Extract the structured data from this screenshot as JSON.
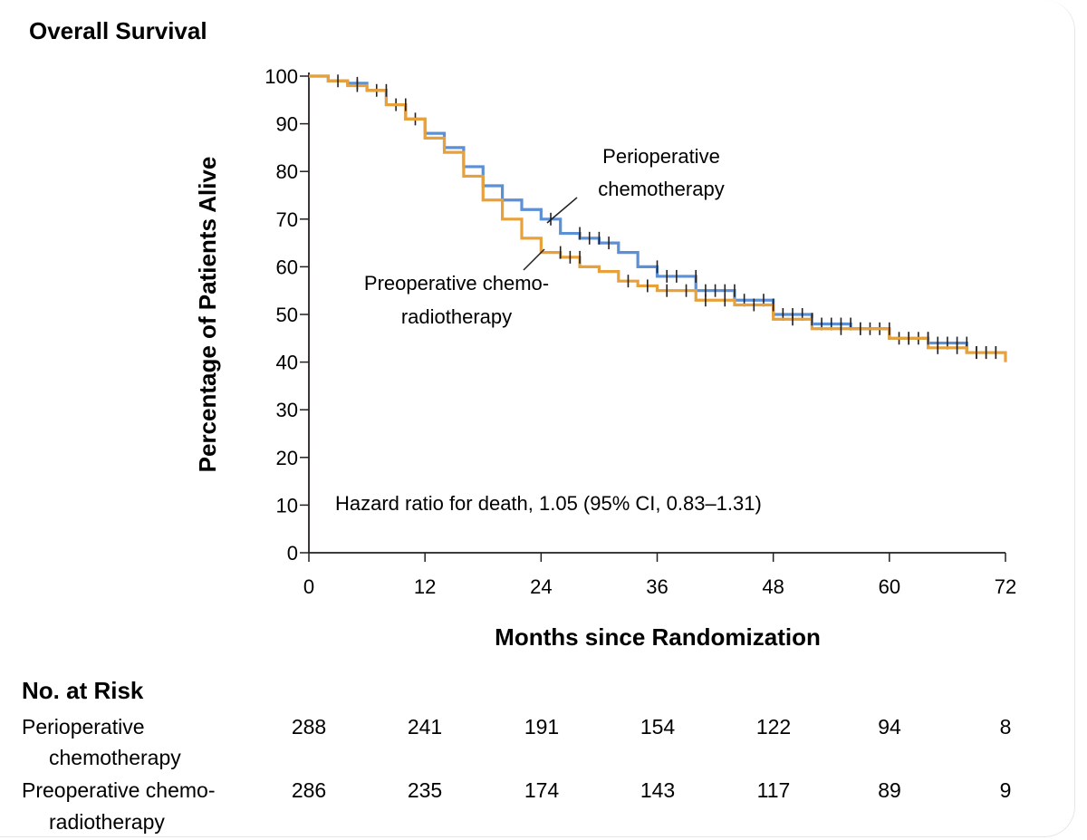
{
  "chart_data": {
    "type": "line",
    "title": "Overall Survival",
    "xlabel": "Months since Randomization",
    "ylabel": "Percentage of Patients Alive",
    "xlim": [
      0,
      72
    ],
    "ylim": [
      0,
      100
    ],
    "xticks": [
      0,
      12,
      24,
      36,
      48,
      60,
      72
    ],
    "yticks": [
      0,
      10,
      20,
      30,
      40,
      50,
      60,
      70,
      80,
      90,
      100
    ],
    "annotation": "Hazard ratio for death, 1.05 (95% CI, 0.83–1.31)",
    "series": [
      {
        "name": "Perioperative chemotherapy",
        "label_lines": [
          "Perioperative",
          "chemotherapy"
        ],
        "color": "#5b8fd6",
        "points": [
          [
            0,
            100
          ],
          [
            2,
            99
          ],
          [
            4,
            98.5
          ],
          [
            6,
            97
          ],
          [
            8,
            94
          ],
          [
            10,
            91
          ],
          [
            12,
            88
          ],
          [
            14,
            85
          ],
          [
            16,
            81
          ],
          [
            18,
            77
          ],
          [
            20,
            74
          ],
          [
            22,
            72
          ],
          [
            24,
            70
          ],
          [
            26,
            67
          ],
          [
            28,
            66
          ],
          [
            30,
            65
          ],
          [
            32,
            63
          ],
          [
            34,
            60
          ],
          [
            36,
            58
          ],
          [
            40,
            55
          ],
          [
            44,
            53
          ],
          [
            48,
            50
          ],
          [
            52,
            48
          ],
          [
            56,
            47
          ],
          [
            60,
            45
          ],
          [
            64,
            44
          ],
          [
            68,
            42
          ],
          [
            72,
            42
          ]
        ],
        "censor_marks": [
          5,
          7,
          9,
          11,
          25,
          28,
          29,
          30,
          31,
          36,
          37,
          38,
          40,
          41,
          42,
          43,
          44,
          45,
          47,
          49,
          50,
          51,
          53,
          54,
          55,
          56,
          57,
          58,
          59,
          61,
          62,
          63,
          64,
          65,
          66,
          67,
          68,
          69,
          70,
          71
        ]
      },
      {
        "name": "Preoperative chemoradiotherapy",
        "label_lines": [
          "Preoperative chemo-",
          "radiotherapy"
        ],
        "color": "#e8a13a",
        "points": [
          [
            0,
            100
          ],
          [
            2,
            99
          ],
          [
            4,
            98
          ],
          [
            6,
            97
          ],
          [
            8,
            94
          ],
          [
            10,
            91
          ],
          [
            12,
            87
          ],
          [
            14,
            84
          ],
          [
            16,
            79
          ],
          [
            18,
            74
          ],
          [
            20,
            70
          ],
          [
            22,
            66
          ],
          [
            24,
            63
          ],
          [
            26,
            62
          ],
          [
            28,
            60
          ],
          [
            30,
            59
          ],
          [
            32,
            57
          ],
          [
            34,
            56
          ],
          [
            36,
            55
          ],
          [
            40,
            53
          ],
          [
            44,
            52
          ],
          [
            48,
            49
          ],
          [
            52,
            47
          ],
          [
            56,
            47
          ],
          [
            60,
            45
          ],
          [
            64,
            43
          ],
          [
            68,
            42
          ],
          [
            72,
            40
          ]
        ],
        "censor_marks": [
          3,
          5,
          8,
          10,
          26,
          27,
          28,
          33,
          35,
          37,
          39,
          41,
          43,
          46,
          48,
          50,
          52,
          55,
          57,
          60,
          62,
          64,
          65,
          67,
          69,
          70,
          71
        ]
      }
    ]
  },
  "risk_table": {
    "heading": "No. at Risk",
    "months": [
      0,
      12,
      24,
      36,
      48,
      60,
      72
    ],
    "rows": [
      {
        "label_lines": [
          "Perioperative",
          "chemotherapy"
        ],
        "values": [
          "288",
          "241",
          "191",
          "154",
          "122",
          "94",
          "8"
        ]
      },
      {
        "label_lines": [
          "Preoperative chemo-",
          "radiotherapy"
        ],
        "values": [
          "286",
          "235",
          "174",
          "143",
          "117",
          "89",
          "9"
        ]
      }
    ]
  }
}
